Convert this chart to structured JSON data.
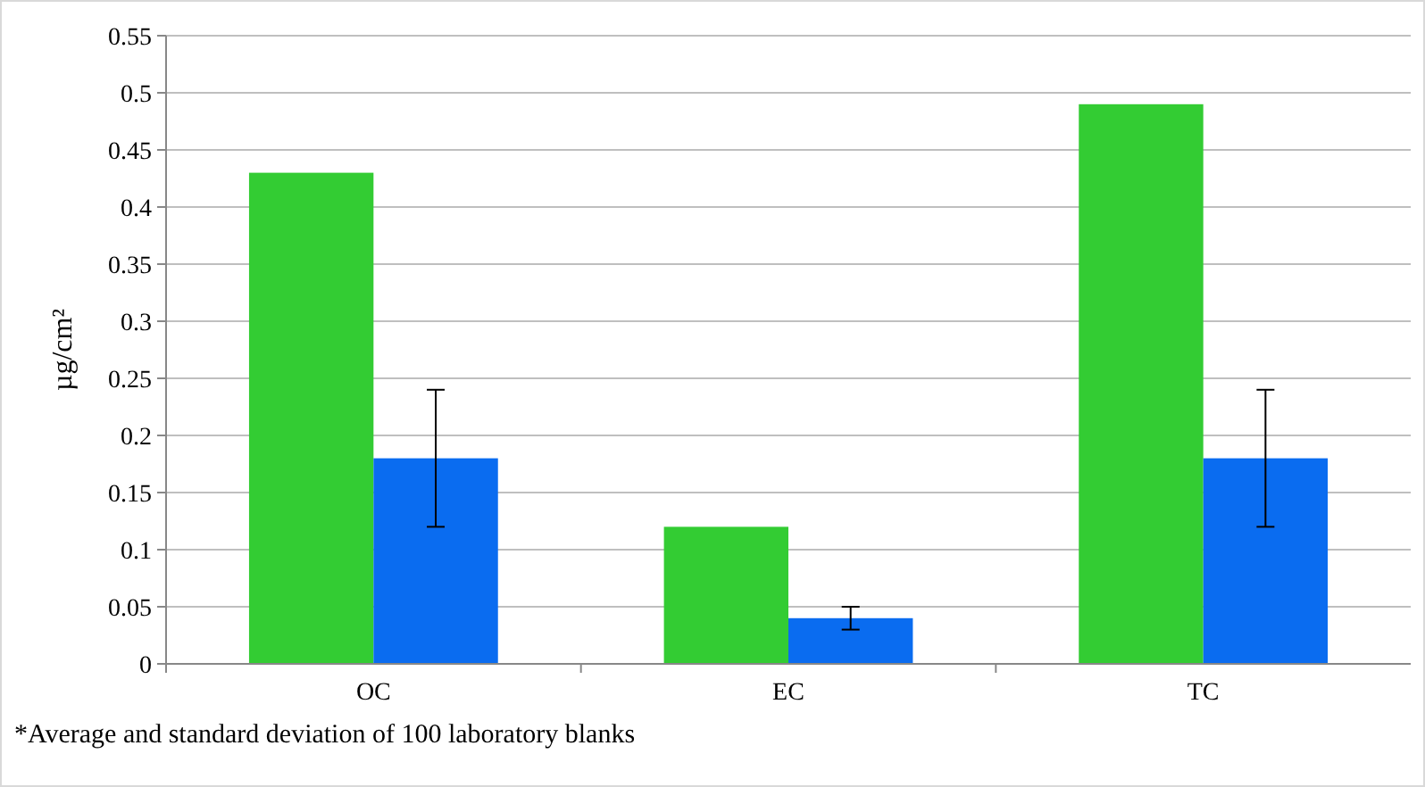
{
  "chart_data": {
    "type": "bar",
    "ylabel": "µg/cm²",
    "categories": [
      "OC",
      "EC",
      "TC"
    ],
    "series": [
      {
        "color": "#33cc33",
        "values": [
          0.43,
          0.12,
          0.49
        ]
      },
      {
        "color": "#0a6cf0",
        "values": [
          0.18,
          0.04,
          0.18
        ],
        "errors": [
          0.06,
          0.01,
          0.06
        ]
      }
    ],
    "ylim": [
      0,
      0.55
    ],
    "yticks": [
      0,
      0.05,
      0.1,
      0.15,
      0.2,
      0.25,
      0.3,
      0.35,
      0.4,
      0.45,
      0.5,
      0.55
    ],
    "grid": "y",
    "annotations": [
      "*Average and standard deviation of 100 laboratory blanks"
    ]
  }
}
